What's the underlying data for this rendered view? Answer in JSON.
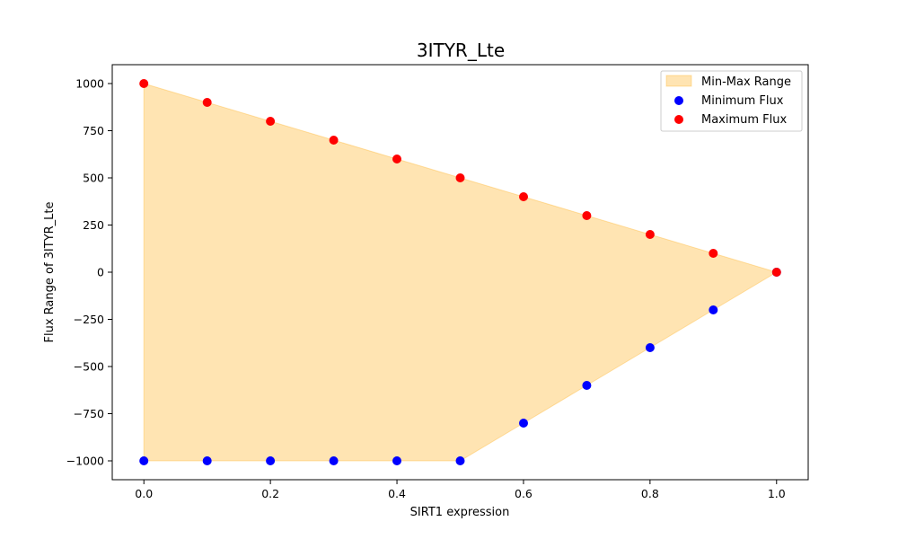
{
  "chart_data": {
    "type": "scatter",
    "title": "3ITYR_Lte",
    "xlabel": "SIRT1 expression",
    "ylabel": "Flux Range of 3ITYR_Lte",
    "xlim": [
      -0.05,
      1.05
    ],
    "ylim": [
      -1100,
      1100
    ],
    "x_ticks": [
      0.0,
      0.2,
      0.4,
      0.6,
      0.8,
      1.0
    ],
    "x_tick_labels": [
      "0.0",
      "0.2",
      "0.4",
      "0.6",
      "0.8",
      "1.0"
    ],
    "y_ticks": [
      1000,
      750,
      500,
      250,
      0,
      -250,
      -500,
      -750,
      -1000
    ],
    "y_tick_labels": [
      "1000",
      "750",
      "500",
      "250",
      "0",
      "−250",
      "−500",
      "−750",
      "−1000"
    ],
    "x": [
      0.0,
      0.1,
      0.2,
      0.3,
      0.4,
      0.5,
      0.6,
      0.7,
      0.8,
      0.9,
      1.0
    ],
    "series": [
      {
        "name": "Minimum Flux",
        "color": "#0000ff",
        "values": [
          -1000,
          -1000,
          -1000,
          -1000,
          -1000,
          -1000,
          -800,
          -600,
          -400,
          -200,
          0
        ]
      },
      {
        "name": "Maximum Flux",
        "color": "#ff0000",
        "values": [
          1000,
          900,
          800,
          700,
          600,
          500,
          400,
          300,
          200,
          100,
          0
        ]
      }
    ],
    "fill": {
      "name": "Min-Max Range",
      "color": "#ffa500",
      "alpha": 0.3
    },
    "legend_position": "top-right",
    "grid": false
  }
}
